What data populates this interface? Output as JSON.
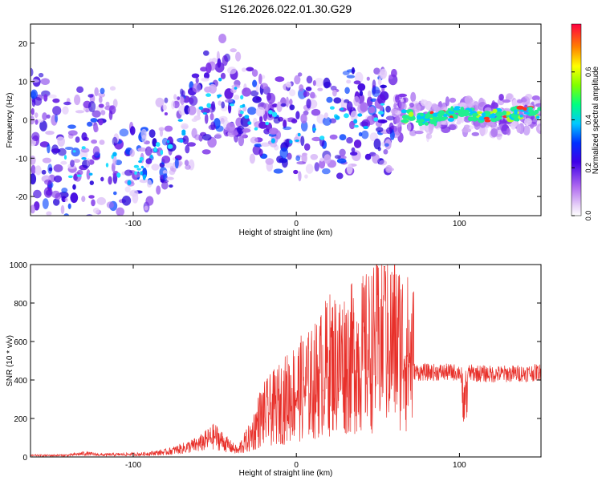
{
  "page_title": "S126.2026.022.01.30.G29",
  "chart_data": [
    {
      "type": "heatmap",
      "xlabel": "Height of straight line (km)",
      "ylabel": "Frequency (Hz)",
      "xlim": [
        -163,
        150
      ],
      "ylim": [
        -25,
        25
      ],
      "xticks": [
        -100,
        0,
        100
      ],
      "yticks": [
        -20,
        -10,
        0,
        10,
        20
      ],
      "colorbar": {
        "label": "Normalized spectral amplitude",
        "range": [
          0,
          0.8
        ],
        "ticks": [
          "0.0",
          "0.2",
          "0.4",
          "0.6"
        ]
      },
      "ridge": {
        "description_points_km_hz": [
          [
            -160,
            -4
          ],
          [
            -140,
            -12
          ],
          [
            -120,
            -10
          ],
          [
            -100,
            -14
          ],
          [
            -80,
            -6
          ],
          [
            -60,
            2
          ],
          [
            -45,
            8
          ],
          [
            -30,
            2
          ],
          [
            -10,
            -3
          ],
          [
            10,
            -2
          ],
          [
            30,
            0
          ],
          [
            50,
            0
          ],
          [
            65,
            1
          ],
          [
            80,
            0
          ],
          [
            100,
            2
          ],
          [
            120,
            1
          ],
          [
            145,
            2
          ]
        ]
      }
    },
    {
      "type": "line",
      "xlabel": "Height of straight line (km)",
      "ylabel": "SNR (10 * v/v)",
      "xlim": [
        -163,
        150
      ],
      "ylim": [
        0,
        1000
      ],
      "xticks": [
        -100,
        0,
        100
      ],
      "yticks": [
        0,
        200,
        400,
        600,
        800,
        1000
      ],
      "series_color": "#e8302a",
      "envelope_km_snr": [
        [
          -163,
          10
        ],
        [
          -140,
          12
        ],
        [
          -130,
          25
        ],
        [
          -120,
          15
        ],
        [
          -95,
          20
        ],
        [
          -80,
          35
        ],
        [
          -70,
          60
        ],
        [
          -60,
          90
        ],
        [
          -55,
          120
        ],
        [
          -50,
          150
        ],
        [
          -45,
          110
        ],
        [
          -40,
          70
        ],
        [
          -35,
          40
        ],
        [
          -28,
          90
        ],
        [
          -22,
          180
        ],
        [
          -10,
          240
        ],
        [
          0,
          300
        ],
        [
          10,
          330
        ],
        [
          20,
          420
        ],
        [
          30,
          430
        ],
        [
          40,
          460
        ],
        [
          50,
          500
        ],
        [
          55,
          520
        ],
        [
          60,
          520
        ],
        [
          65,
          500
        ],
        [
          70,
          450
        ],
        [
          75,
          440
        ],
        [
          100,
          440
        ],
        [
          120,
          430
        ],
        [
          140,
          435
        ],
        [
          150,
          440
        ]
      ]
    }
  ]
}
